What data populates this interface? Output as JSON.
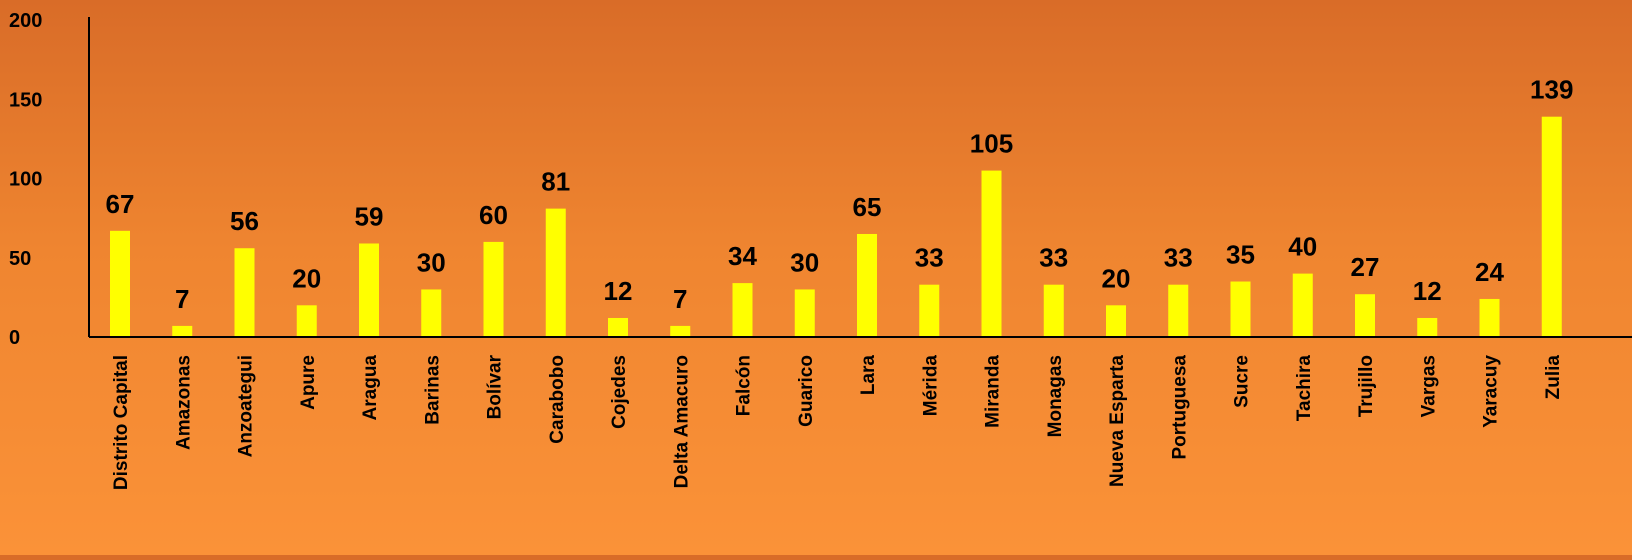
{
  "chart_data": {
    "type": "bar",
    "title": "",
    "xlabel": "",
    "ylabel": "",
    "ylim": [
      0,
      200
    ],
    "yticks": [
      0,
      50,
      100,
      150,
      200
    ],
    "grid": false,
    "legend": "none",
    "bar_color": "#ffff00",
    "axis_color": "#000000",
    "categories": [
      "Distrito Capital",
      "Amazonas",
      "Anzoategui",
      "Apure",
      "Aragua",
      "Barinas",
      "Bolívar",
      "Carabobo",
      "Cojedes",
      "Delta Amacuro",
      "Falcón",
      "Guarico",
      "Lara",
      "Mérida",
      "Miranda",
      "Monagas",
      "Nueva Esparta",
      "Portuguesa",
      "Sucre",
      "Tachira",
      "Trujillo",
      "Vargas",
      "Yaracuy",
      "Zulia"
    ],
    "values": [
      67,
      7,
      56,
      20,
      59,
      30,
      60,
      81,
      12,
      7,
      34,
      30,
      65,
      33,
      105,
      33,
      20,
      33,
      35,
      40,
      27,
      12,
      24,
      139
    ]
  }
}
